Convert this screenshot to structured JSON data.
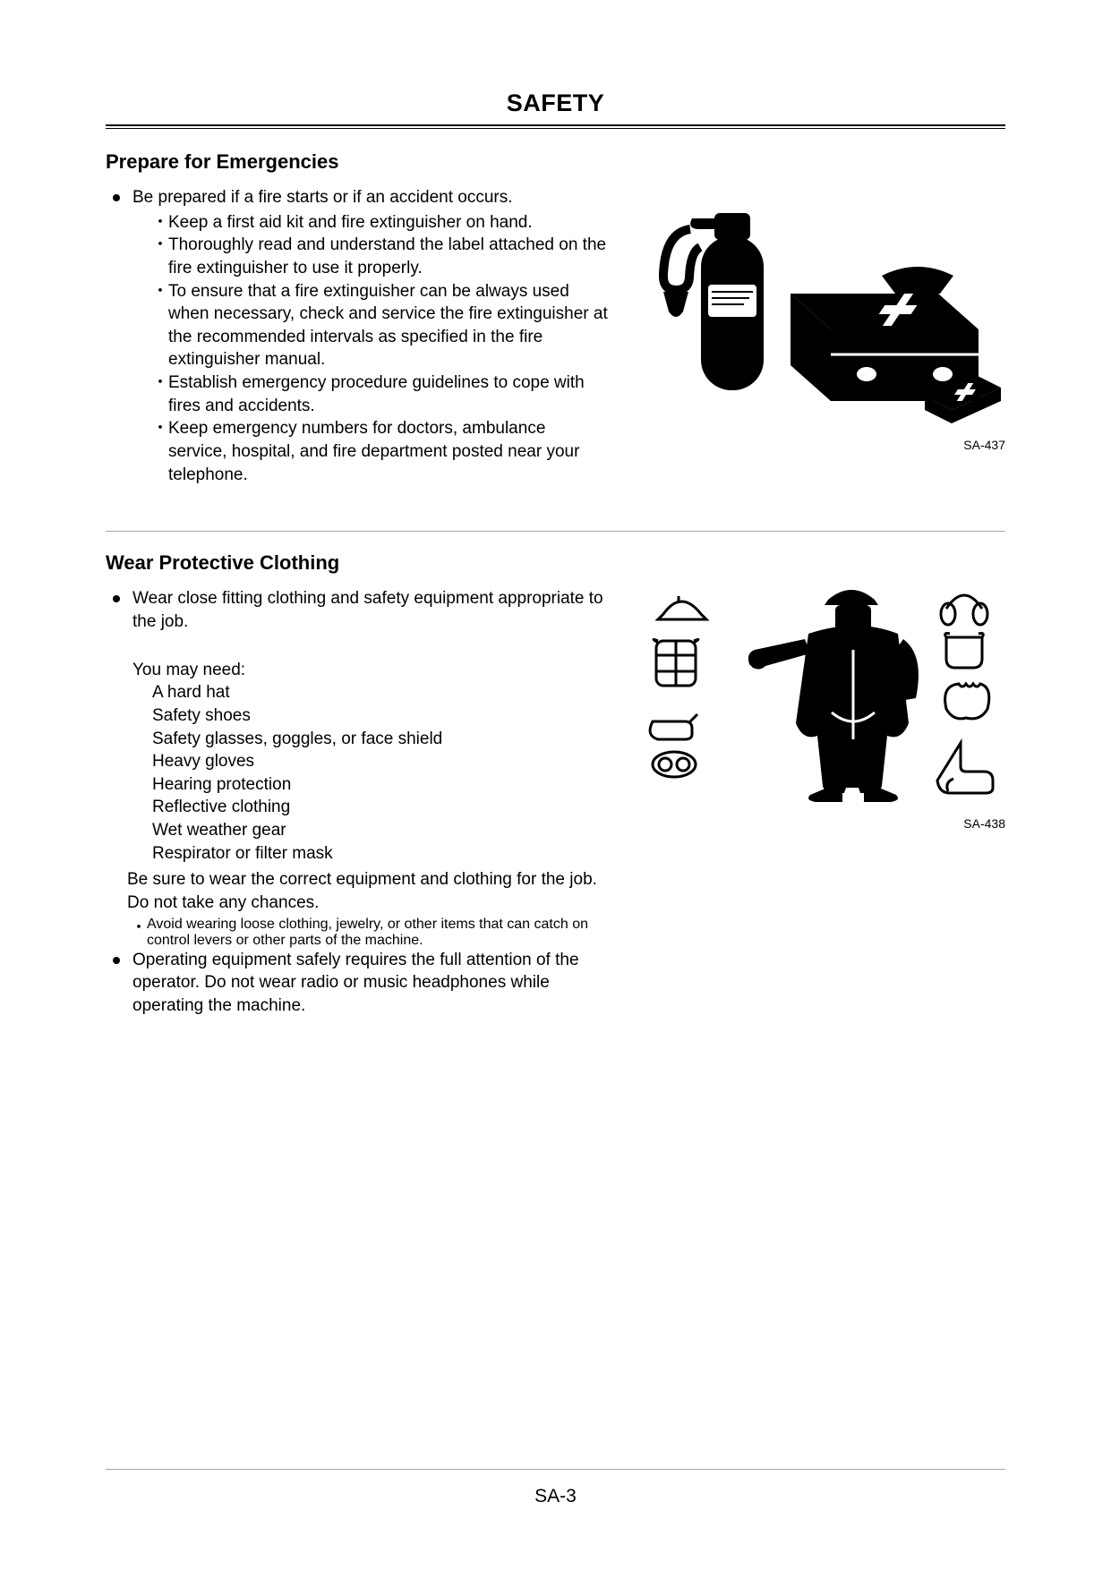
{
  "page_title": "SAFETY",
  "page_number": "SA-3",
  "section1": {
    "heading": "Prepare for Emergencies",
    "bullets": [
      {
        "text": "Be prepared if a fire starts or if an accident occurs.",
        "subs": [
          "Keep a first aid kit and fire extinguisher on hand.",
          "Thoroughly read and understand the label attached on the fire extinguisher to use it properly.",
          "To ensure that a fire extinguisher can be always used when necessary, check and service the fire extinguisher at the recommended intervals as specified in the fire extinguisher manual.",
          "Establish emergency procedure guidelines to cope with fires and accidents.",
          "Keep emergency numbers for doctors, ambulance service, hospital, and fire department posted near your telephone."
        ]
      }
    ],
    "image_caption": "SA-437"
  },
  "section2": {
    "heading": "Wear Protective Clothing",
    "bullet1": "Wear close fitting clothing and safety equipment appropriate to the job.",
    "need_intro": "You may need:",
    "need_items": [
      "A hard hat",
      "Safety shoes",
      "Safety glasses, goggles, or face shield",
      "Heavy gloves",
      "Hearing protection",
      "Reflective clothing",
      "Wet weather gear",
      "Respirator or filter mask"
    ],
    "after_need": "Be sure to wear the correct equipment and clothing for the job. Do not take any chances.",
    "after_need_sub": "Avoid wearing loose clothing, jewelry, or other items that can catch on control levers or other parts of the machine.",
    "bullet2": "Operating equipment safely requires the full attention of the operator. Do not wear radio or music headphones while operating the machine.",
    "image_caption": "SA-438"
  }
}
